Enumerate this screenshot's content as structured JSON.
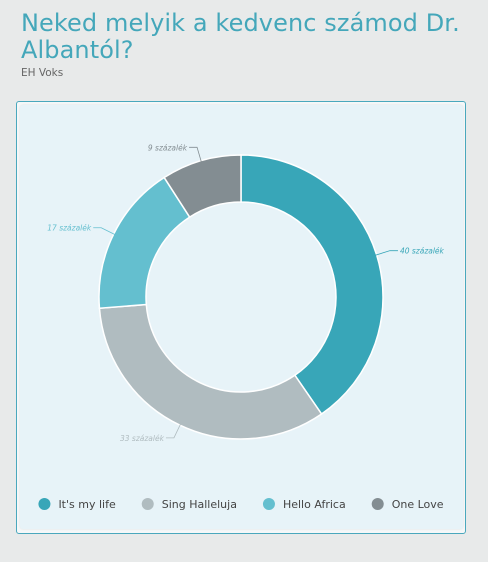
{
  "header": {
    "title": "Neked melyik a kedvenc számod Dr. Albantól?",
    "subtitle": "EH Voks"
  },
  "chart_data": {
    "type": "pie",
    "title": "Neked melyik a kedvenc számod Dr. Albantól?",
    "subtitle": "EH Voks",
    "donut": true,
    "legend_position": "bottom",
    "series": [
      {
        "name": "It's my life",
        "value": 40,
        "label": "40 százalék",
        "color": "#38a6b8"
      },
      {
        "name": "Sing Halleluja",
        "value": 33,
        "label": "33 százalék",
        "color": "#b0bcc0"
      },
      {
        "name": "Hello Africa",
        "value": 17,
        "label": "17 százalék",
        "color": "#64bfcf"
      },
      {
        "name": "One Love",
        "value": 9,
        "label": "9 százalék",
        "color": "#838d92"
      }
    ]
  }
}
